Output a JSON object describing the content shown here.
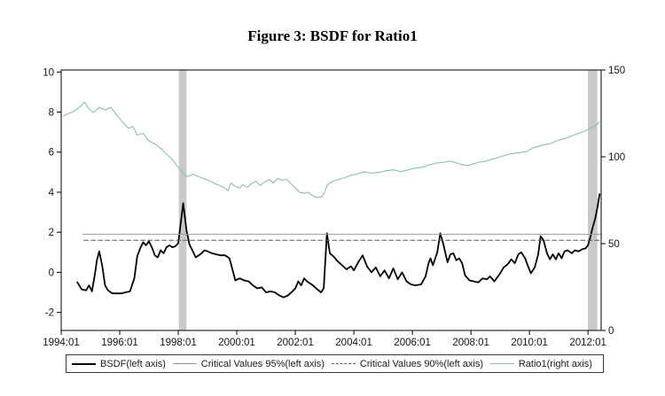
{
  "figure": {
    "title": "Figure 3: BSDF for Ratio1"
  },
  "colors": {
    "bsdf": "#000000",
    "cv95": "#9b9b9b",
    "cv90": "#5a5a5a",
    "ratio1": "#8abfae",
    "band": "#c9c9c9",
    "axis": "#000000",
    "background": "#ffffff"
  },
  "chart_data": {
    "type": "line",
    "title": "Figure 3: BSDF for Ratio1",
    "grid": false,
    "legend_position": "bottom",
    "x_axis": {
      "range": [
        1994.0,
        2012.45
      ],
      "tick_values": [
        1994,
        1996,
        1998,
        2000,
        2002,
        2004,
        2006,
        2008,
        2010,
        2012
      ],
      "tick_labels": [
        "1994:01",
        "1996:01",
        "1998:01",
        "2000:01",
        "2002:01",
        "2004:01",
        "2006:01",
        "2008:01",
        "2010:01",
        "2012:01"
      ]
    },
    "left_axis": {
      "range": [
        -2.9,
        10.1
      ],
      "tick_values": [
        10,
        8,
        6,
        4,
        2,
        0,
        -2
      ],
      "tick_labels": [
        "10",
        "8",
        "6",
        "4",
        "2",
        "0",
        "-2"
      ]
    },
    "right_axis": {
      "range": [
        0,
        150
      ],
      "tick_values": [
        150,
        100,
        50,
        0
      ],
      "tick_labels": [
        "150",
        "100",
        "50",
        "0"
      ]
    },
    "shaded_regions": [
      {
        "x0": 1998.02,
        "x1": 1998.28
      },
      {
        "x0": 2012.0,
        "x1": 2012.32
      }
    ],
    "series": [
      {
        "id": "bsdf",
        "name": "BSDF(left axis)",
        "axis": "left",
        "style": "solid",
        "color": "#000000",
        "width": 1.8,
        "x": [
          1994.55,
          1994.7,
          1994.85,
          1994.95,
          1995.05,
          1995.15,
          1995.22,
          1995.3,
          1995.4,
          1995.5,
          1995.6,
          1995.75,
          1995.9,
          1996.05,
          1996.2,
          1996.35,
          1996.5,
          1996.6,
          1996.7,
          1996.8,
          1996.9,
          1997.0,
          1997.1,
          1997.2,
          1997.3,
          1997.4,
          1997.5,
          1997.6,
          1997.7,
          1997.8,
          1997.9,
          1998.0,
          1998.08,
          1998.17,
          1998.28,
          1998.38,
          1998.5,
          1998.6,
          1998.7,
          1998.8,
          1998.9,
          1999.0,
          1999.15,
          1999.3,
          1999.45,
          1999.6,
          1999.75,
          1999.85,
          1999.95,
          2000.1,
          2000.25,
          2000.4,
          2000.55,
          2000.7,
          2000.85,
          2001.0,
          2001.15,
          2001.3,
          2001.45,
          2001.6,
          2001.75,
          2001.9,
          2002.0,
          2002.1,
          2002.2,
          2002.3,
          2002.4,
          2002.5,
          2002.6,
          2002.75,
          2002.88,
          2002.97,
          2003.08,
          2003.18,
          2003.3,
          2003.45,
          2003.6,
          2003.75,
          2003.9,
          2004.0,
          2004.15,
          2004.3,
          2004.45,
          2004.6,
          2004.75,
          2004.9,
          2005.05,
          2005.2,
          2005.35,
          2005.5,
          2005.65,
          2005.8,
          2005.95,
          2006.1,
          2006.3,
          2006.45,
          2006.55,
          2006.62,
          2006.7,
          2006.85,
          2006.95,
          2007.05,
          2007.12,
          2007.2,
          2007.3,
          2007.4,
          2007.5,
          2007.6,
          2007.7,
          2007.8,
          2007.95,
          2008.1,
          2008.25,
          2008.4,
          2008.55,
          2008.65,
          2008.8,
          2009.0,
          2009.12,
          2009.25,
          2009.38,
          2009.5,
          2009.62,
          2009.72,
          2009.85,
          2009.95,
          2010.05,
          2010.18,
          2010.3,
          2010.38,
          2010.48,
          2010.6,
          2010.7,
          2010.8,
          2010.9,
          2011.0,
          2011.1,
          2011.2,
          2011.3,
          2011.45,
          2011.55,
          2011.68,
          2011.8,
          2011.92,
          2012.0,
          2012.08,
          2012.15,
          2012.25,
          2012.33,
          2012.4
        ],
        "values": [
          -0.5,
          -0.85,
          -0.9,
          -0.65,
          -0.95,
          -0.1,
          0.6,
          1.05,
          0.35,
          -0.65,
          -0.9,
          -1.05,
          -1.05,
          -1.05,
          -1.0,
          -0.95,
          -0.3,
          0.8,
          1.2,
          1.5,
          1.35,
          1.55,
          1.25,
          0.85,
          0.75,
          1.1,
          0.95,
          1.25,
          1.35,
          1.25,
          1.3,
          1.45,
          2.4,
          3.45,
          2.1,
          1.4,
          1.05,
          0.75,
          0.85,
          0.95,
          1.1,
          1.05,
          0.95,
          0.9,
          0.85,
          0.85,
          0.7,
          0.15,
          -0.4,
          -0.3,
          -0.4,
          -0.45,
          -0.65,
          -0.8,
          -0.75,
          -1.0,
          -0.95,
          -1.0,
          -1.15,
          -1.25,
          -1.15,
          -0.95,
          -0.8,
          -0.45,
          -0.65,
          -0.3,
          -0.45,
          -0.55,
          -0.65,
          -0.85,
          -1.0,
          -0.8,
          1.95,
          0.95,
          0.8,
          0.55,
          0.35,
          0.15,
          0.3,
          0.1,
          0.5,
          0.85,
          0.3,
          0.0,
          0.25,
          -0.2,
          0.1,
          -0.3,
          0.2,
          -0.35,
          0.0,
          -0.45,
          -0.6,
          -0.65,
          -0.6,
          -0.2,
          0.45,
          0.7,
          0.35,
          1.0,
          1.95,
          1.45,
          1.0,
          0.5,
          0.9,
          0.95,
          0.6,
          0.7,
          0.45,
          -0.15,
          -0.4,
          -0.45,
          -0.5,
          -0.3,
          -0.35,
          -0.2,
          -0.45,
          -0.05,
          0.25,
          0.4,
          0.65,
          0.45,
          0.9,
          1.0,
          0.7,
          0.3,
          -0.05,
          0.25,
          0.9,
          1.8,
          1.6,
          0.95,
          0.65,
          0.9,
          0.65,
          0.95,
          0.7,
          1.05,
          1.1,
          0.95,
          1.1,
          1.05,
          1.15,
          1.2,
          1.35,
          1.75,
          2.2,
          2.7,
          3.3,
          3.9
        ]
      },
      {
        "id": "cv95",
        "name": "Critical Values 95%(left axis)",
        "axis": "left",
        "style": "solid",
        "color": "#9b9b9b",
        "width": 1,
        "x": [
          1994.73,
          2012.45
        ],
        "values": [
          1.9,
          1.9
        ]
      },
      {
        "id": "cv90",
        "name": "Critical Values 90%(left axis)",
        "axis": "left",
        "style": "dashed",
        "color": "#5a5a5a",
        "width": 1,
        "x": [
          1994.78,
          2012.45
        ],
        "values": [
          1.6,
          1.6
        ]
      },
      {
        "id": "ratio1",
        "name": "Ratio1(right axis)",
        "axis": "right",
        "style": "solid",
        "color": "#8abfae",
        "width": 1.1,
        "x": [
          1994.08,
          1994.2,
          1994.35,
          1994.5,
          1994.65,
          1994.8,
          1994.95,
          1995.1,
          1995.3,
          1995.5,
          1995.7,
          1995.9,
          1996.1,
          1996.3,
          1996.45,
          1996.6,
          1996.8,
          1997.0,
          1997.2,
          1997.4,
          1997.6,
          1997.8,
          1998.0,
          1998.15,
          1998.3,
          1998.5,
          1998.7,
          1998.95,
          1999.2,
          1999.4,
          1999.6,
          1999.7,
          1999.8,
          1999.95,
          2000.1,
          2000.2,
          2000.35,
          2000.5,
          2000.65,
          2000.8,
          2000.95,
          2001.1,
          2001.25,
          2001.4,
          2001.55,
          2001.7,
          2001.85,
          2002.0,
          2002.15,
          2002.3,
          2002.45,
          2002.6,
          2002.75,
          2002.9,
          2003.0,
          2003.1,
          2003.3,
          2003.5,
          2003.7,
          2003.9,
          2004.1,
          2004.35,
          2004.6,
          2004.85,
          2005.1,
          2005.35,
          2005.6,
          2005.85,
          2006.1,
          2006.35,
          2006.6,
          2006.85,
          2007.1,
          2007.3,
          2007.5,
          2007.7,
          2007.9,
          2008.1,
          2008.3,
          2008.5,
          2008.7,
          2008.9,
          2009.1,
          2009.3,
          2009.5,
          2009.7,
          2009.9,
          2010.1,
          2010.3,
          2010.5,
          2010.7,
          2010.9,
          2011.1,
          2011.3,
          2011.5,
          2011.7,
          2011.9,
          2012.1,
          2012.25,
          2012.4
        ],
        "values": [
          123.5,
          124.5,
          125.5,
          127,
          129,
          131.5,
          127.5,
          125.5,
          128.5,
          127,
          128.5,
          124,
          120,
          116.5,
          117.5,
          112.5,
          113.5,
          109,
          107.5,
          105,
          101.5,
          98.5,
          94,
          91,
          88.5,
          90,
          88.5,
          87,
          85,
          83.5,
          82,
          80.5,
          85,
          83,
          82,
          84,
          82.5,
          84.5,
          86,
          83.5,
          85.5,
          87,
          85,
          87.5,
          86.5,
          87,
          84.5,
          82,
          79.5,
          79,
          79.5,
          77.5,
          76.5,
          77,
          79.5,
          84,
          86,
          87,
          88,
          89.5,
          90,
          91.5,
          90.5,
          91,
          92,
          92.5,
          91.5,
          92.5,
          93.5,
          94,
          95.5,
          96.5,
          97,
          97.5,
          96.5,
          95.5,
          95,
          96,
          97,
          97.5,
          98.5,
          99.5,
          100.5,
          101.5,
          102,
          102.5,
          103,
          105,
          106,
          107,
          107.5,
          109,
          110,
          111,
          112.5,
          113.5,
          115,
          116.5,
          118,
          120
        ]
      }
    ]
  }
}
